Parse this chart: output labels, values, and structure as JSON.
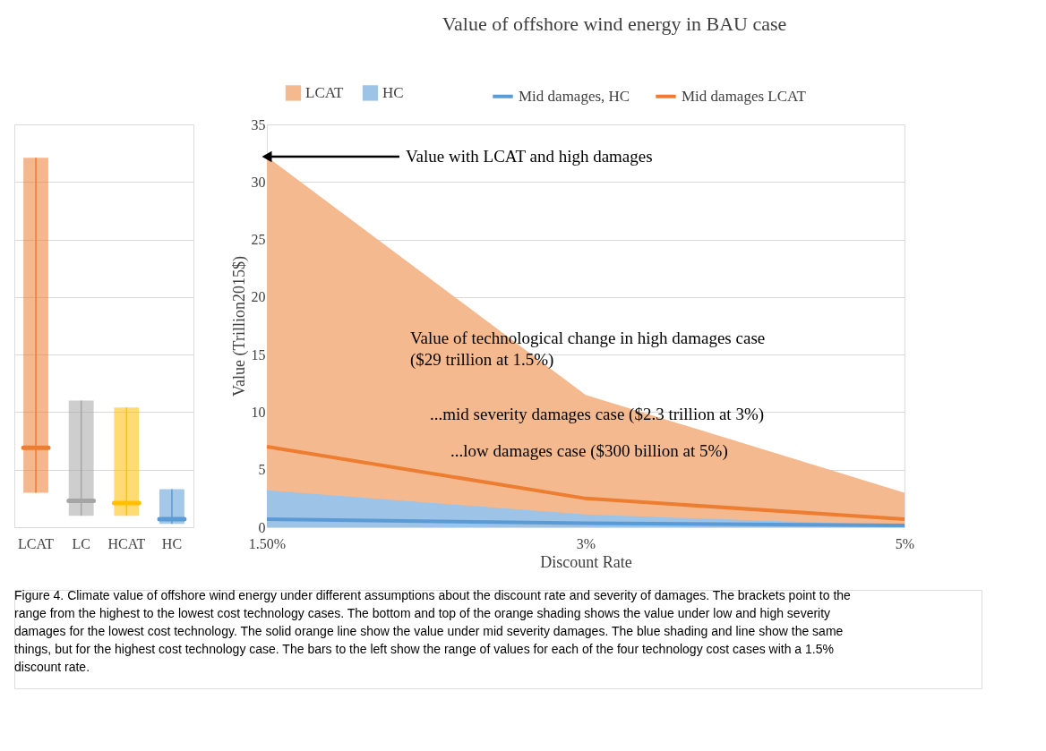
{
  "chart_data": [
    {
      "type": "box",
      "categories": [
        "LCAT",
        "LC",
        "HCAT",
        "HC"
      ],
      "colors": [
        "#ed7d31",
        "#a5a5a5",
        "#ffc000",
        "#5b9bd5"
      ],
      "boxes": [
        {
          "low": 3.0,
          "q1": 3.0,
          "median": 6.9,
          "q3": 32.1,
          "high": 32.1
        },
        {
          "low": 1.0,
          "q1": 1.0,
          "median": 2.3,
          "q3": 11.0,
          "high": 11.0
        },
        {
          "low": 1.0,
          "q1": 1.0,
          "median": 2.1,
          "q3": 10.4,
          "high": 10.4
        },
        {
          "low": 0.3,
          "q1": 0.3,
          "median": 0.7,
          "q3": 3.3,
          "high": 3.3
        }
      ],
      "ylim": [
        0,
        35
      ],
      "yticks": [
        0,
        5,
        10,
        15,
        20,
        25,
        30,
        35
      ],
      "grid": "y",
      "tick_labels": "x"
    },
    {
      "type": "area",
      "title": "Value of offshore wind energy in BAU  case",
      "xlabel": "Discount Rate",
      "ylabel": "Value (Trillion2015$)",
      "categories": [
        "1.50%",
        "3%",
        "5%"
      ],
      "series": [
        {
          "name": "LCAT",
          "color": "#f4b98f",
          "values": [
            32.2,
            11.5,
            3.0
          ]
        },
        {
          "name": "HC",
          "color": "#9dc3e6",
          "values": [
            3.2,
            1.1,
            0.15
          ]
        },
        {
          "type": "line",
          "name": "Mid damages, HC",
          "color": "#5b9bd5",
          "values": [
            0.7,
            0.35,
            0.15
          ]
        },
        {
          "type": "line",
          "name": "Mid damages LCAT",
          "color": "#ed7d31",
          "values": [
            7.0,
            2.5,
            0.7
          ]
        }
      ],
      "ylim": [
        0,
        35
      ],
      "yticks": [
        0,
        5,
        10,
        15,
        20,
        25,
        30,
        35
      ],
      "grid": "y",
      "legend": "top",
      "annotations": [
        {
          "text": "Value with LCAT  and high damages",
          "x": "1.50%",
          "y": 32.2
        },
        "Value of technological change in high damages case\n($29 trillion at 1.5%)",
        "...mid severity damages case ($2.3 trillion at 3%)",
        "...low damages case ($300 billion at 5%)",
        "Figure 4. Climate value of offshore wind energy under different assumptions about the discount rate and severity of damages. The brackets point to the range from the highest to the lowest cost technology cases. The bottom and top of the orange shading shows the value under low and high severity damages for the lowest cost technology. The solid orange line show the value under mid severity damages. The blue shading and line show the same things, but for the highest cost technology case. The bars to the left show the range of values for each of the four technology cost cases with a 1.5% discount rate."
      ]
    }
  ]
}
